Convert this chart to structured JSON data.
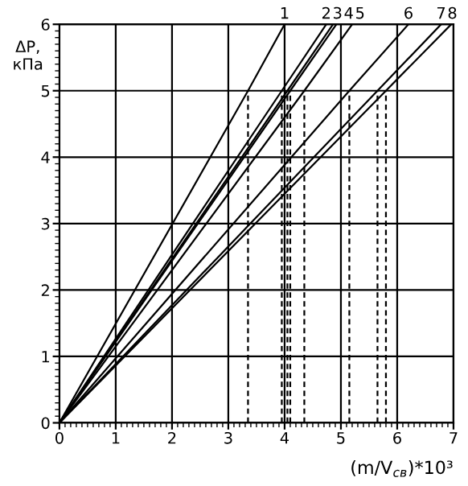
{
  "chart_data": {
    "type": "line",
    "xlabel": "(m/V$_{св}$)*10³",
    "ylabel": "ΔP,\nкПа",
    "xlim": [
      0,
      7
    ],
    "ylim": [
      0,
      6
    ],
    "xticks": [
      0,
      1,
      2,
      3,
      4,
      5,
      6,
      7
    ],
    "yticks": [
      0,
      1,
      2,
      3,
      4,
      5,
      6
    ],
    "grid": true,
    "line_style": "solid",
    "series": [
      {
        "name": "1",
        "color": "#000000",
        "x": [
          0,
          3.35,
          4.0
        ],
        "values": [
          0,
          5,
          6
        ]
      },
      {
        "name": "2",
        "color": "#000000",
        "x": [
          0,
          3.95,
          4.74
        ],
        "values": [
          0,
          5,
          6
        ]
      },
      {
        "name": "3",
        "color": "#000000",
        "x": [
          0,
          4.05,
          4.86
        ],
        "values": [
          0,
          5,
          6
        ]
      },
      {
        "name": "4",
        "color": "#000000",
        "x": [
          0,
          4.1,
          4.92
        ],
        "values": [
          0,
          5,
          6
        ]
      },
      {
        "name": "5",
        "color": "#000000",
        "x": [
          0,
          4.35,
          5.2
        ],
        "values": [
          0,
          5,
          6
        ]
      },
      {
        "name": "6",
        "color": "#000000",
        "x": [
          0,
          5.15,
          6.2
        ],
        "values": [
          0,
          5,
          6
        ]
      },
      {
        "name": "7",
        "color": "#000000",
        "x": [
          0,
          5.65,
          6.78
        ],
        "values": [
          0,
          5,
          6
        ]
      },
      {
        "name": "8",
        "color": "#000000",
        "x": [
          0,
          5.8,
          6.96
        ],
        "values": [
          0,
          5,
          6
        ]
      },
      {
        "color": "#000000",
        "line_style": "dashed",
        "x": [
          3.35,
          3.35
        ],
        "values": [
          0,
          5
        ]
      },
      {
        "color": "#000000",
        "line_style": "dashed",
        "x": [
          3.95,
          3.95
        ],
        "values": [
          0,
          5
        ]
      },
      {
        "color": "#000000",
        "line_style": "dashed",
        "x": [
          4.05,
          4.05
        ],
        "values": [
          0,
          5
        ]
      },
      {
        "color": "#000000",
        "line_style": "dashed",
        "x": [
          4.1,
          4.1
        ],
        "values": [
          0,
          5
        ]
      },
      {
        "color": "#000000",
        "line_style": "dashed",
        "x": [
          4.35,
          4.35
        ],
        "values": [
          0,
          5
        ]
      },
      {
        "color": "#000000",
        "line_style": "dashed",
        "x": [
          5.15,
          5.15
        ],
        "values": [
          0,
          5
        ]
      },
      {
        "color": "#000000",
        "line_style": "dashed",
        "x": [
          5.65,
          5.65
        ],
        "values": [
          0,
          5
        ]
      },
      {
        "color": "#000000",
        "line_style": "dashed",
        "x": [
          5.8,
          5.8
        ],
        "values": [
          0,
          5
        ]
      }
    ]
  }
}
